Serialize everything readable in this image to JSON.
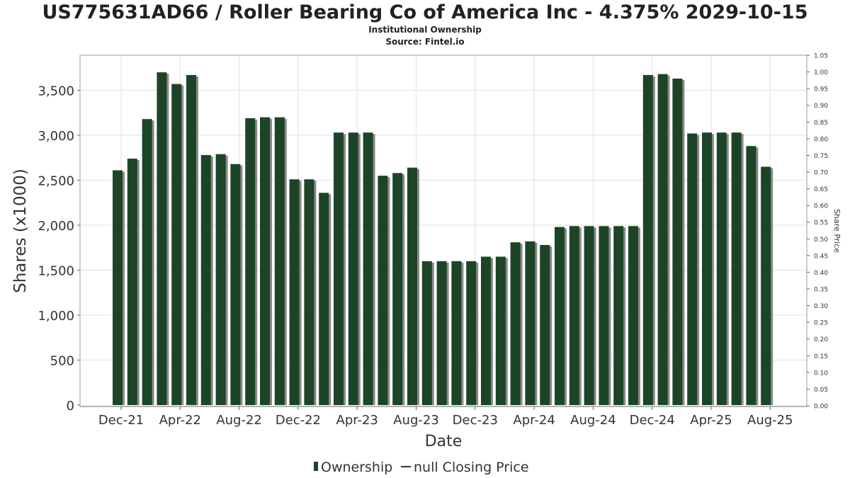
{
  "chart_data": {
    "type": "bar",
    "title": "US775631AD66 / Roller Bearing Co of America Inc - 4.375% 2029-10-15",
    "subtitle": "Institutional Ownership",
    "source": "Source: Fintel.io",
    "xlabel": "Date",
    "ylabel": "Shares (x1000)",
    "y2label": "Share Price",
    "ylim": [
      0,
      3900
    ],
    "y2lim": [
      0,
      1.05
    ],
    "yticks": [
      "0",
      "500",
      "1,000",
      "1,500",
      "2,000",
      "2,500",
      "3,000",
      "3,500"
    ],
    "ytick_values": [
      0,
      500,
      1000,
      1500,
      2000,
      2500,
      3000,
      3500
    ],
    "y2ticks": [
      "0.00",
      "0.05",
      "0.10",
      "0.15",
      "0.20",
      "0.25",
      "0.30",
      "0.35",
      "0.40",
      "0.45",
      "0.50",
      "0.55",
      "0.60",
      "0.65",
      "0.70",
      "0.75",
      "0.80",
      "0.85",
      "0.90",
      "0.95",
      "1.00",
      "1.05"
    ],
    "y2tick_values": [
      0,
      0.05,
      0.1,
      0.15,
      0.2,
      0.25,
      0.3,
      0.35,
      0.4,
      0.45,
      0.5,
      0.55,
      0.6,
      0.65,
      0.7,
      0.75,
      0.8,
      0.85,
      0.9,
      0.95,
      1.0,
      1.05
    ],
    "xticks": [
      "Dec-21",
      "Apr-22",
      "Aug-22",
      "Dec-22",
      "Apr-23",
      "Aug-23",
      "Dec-23",
      "Apr-24",
      "Aug-24",
      "Dec-24",
      "Apr-25",
      "Aug-25"
    ],
    "grid": true,
    "legend_position": "bottom",
    "legend": [
      "Ownership",
      "null Closing Price"
    ],
    "colors": {
      "bar": "#1e4428",
      "bar_shadow": "#8a8a8a",
      "grid": "#e2e2e2",
      "frame": "#999999"
    },
    "values": [
      2610,
      2740,
      3180,
      3700,
      3570,
      3670,
      2780,
      2790,
      2680,
      3190,
      3200,
      3200,
      2510,
      2510,
      2360,
      3030,
      3030,
      3030,
      2550,
      2580,
      2640,
      1600,
      1600,
      1600,
      1600,
      1650,
      1650,
      1810,
      1820,
      1780,
      1980,
      1990,
      1990,
      1990,
      1990,
      1990,
      3670,
      3680,
      3630,
      3020,
      3030,
      3030,
      3030,
      2880,
      2650
    ]
  }
}
